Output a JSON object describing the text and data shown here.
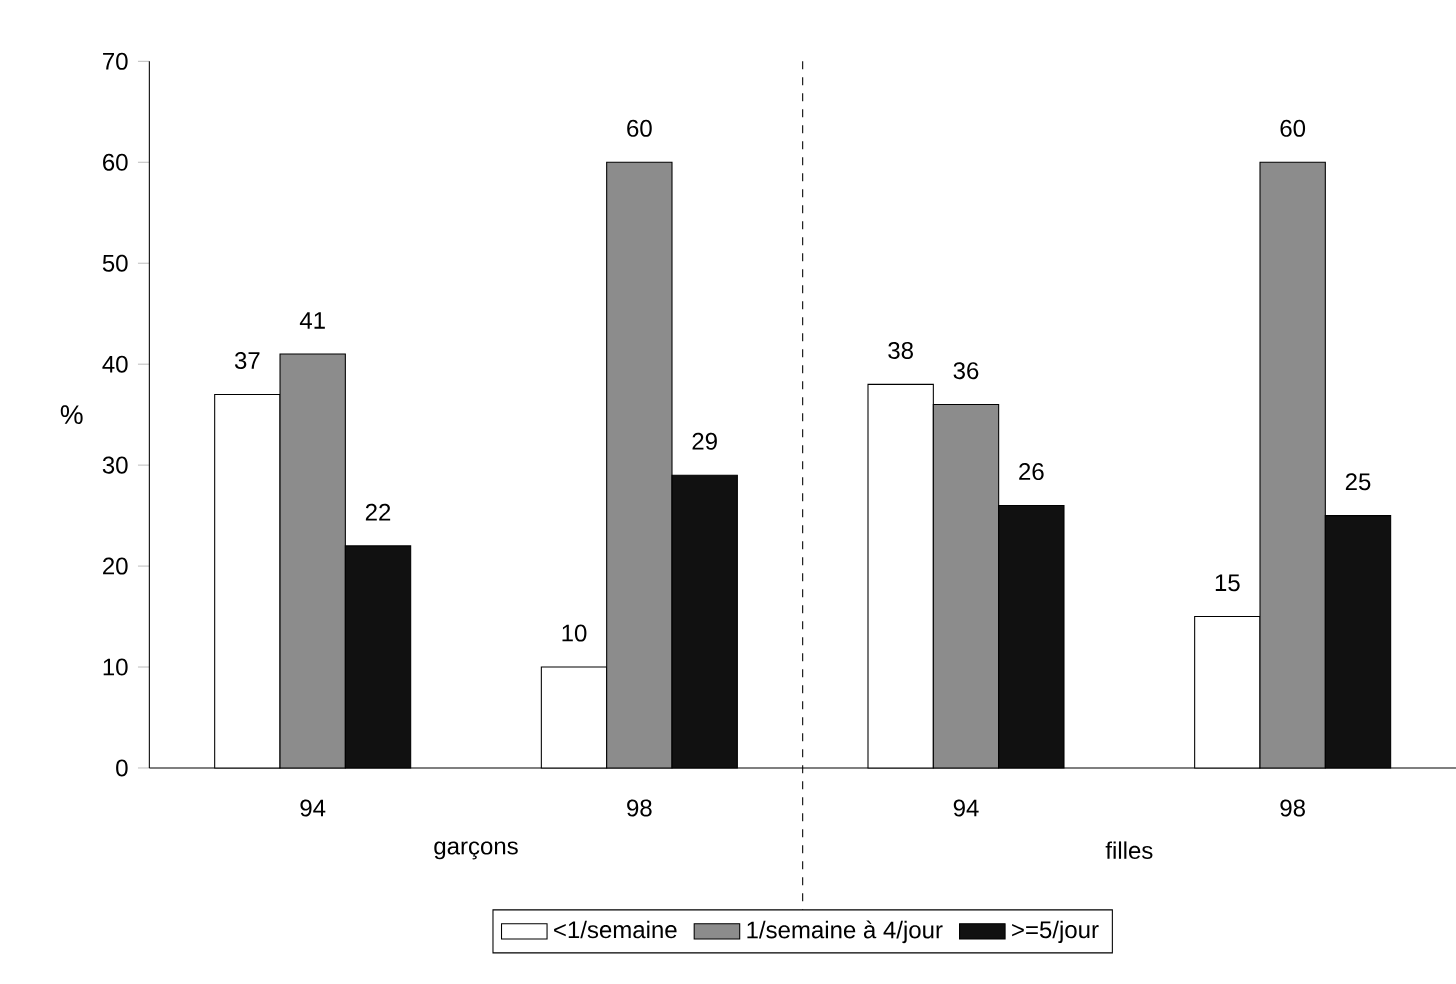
{
  "chart_data": {
    "type": "bar",
    "ylabel": "%",
    "categories": [
      "94",
      "98",
      "94",
      "98"
    ],
    "series": [
      {
        "name": "<1/semaine",
        "color": "#ffffff",
        "values": [
          37,
          10,
          38,
          15
        ]
      },
      {
        "name": "1/semaine à 4/jour",
        "color": "#8c8c8c",
        "values": [
          41,
          60,
          36,
          60
        ]
      },
      {
        "name": ">=5/jour",
        "color": "#111111",
        "values": [
          22,
          29,
          26,
          25
        ]
      }
    ],
    "ylim": [
      0,
      70
    ],
    "yticks": [
      0,
      10,
      20,
      30,
      40,
      50,
      60,
      70
    ],
    "data_labels": true,
    "legend": "bottom",
    "grid": false,
    "annotations": [
      "garçons",
      "filles"
    ]
  }
}
